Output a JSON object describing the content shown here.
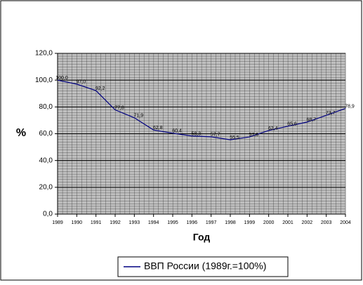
{
  "chart_data": {
    "type": "line",
    "x_label": "Год",
    "y_label": "%",
    "categories": [
      "1989",
      "1990",
      "1991",
      "1992",
      "1993",
      "1994",
      "1995",
      "1996",
      "1997",
      "1998",
      "1999",
      "2000",
      "2001",
      "2002",
      "2003",
      "2004"
    ],
    "series": [
      {
        "name": "ВВП России (1989г.=100%)",
        "color": "#000080",
        "values": [
          100.0,
          97.0,
          92.2,
          77.8,
          71.9,
          62.8,
          60.4,
          58.3,
          57.7,
          55.5,
          57.6,
          62.4,
          65.6,
          68.7,
          73.7,
          78.9
        ],
        "value_labels": [
          "100,0",
          "97,0",
          "92,2",
          "77,8",
          "71,9",
          "62,8",
          "60,4",
          "58,3",
          "57,7",
          "55,5",
          "57,6",
          "62,4",
          "65,6",
          "68,7",
          "73,7",
          "78,9"
        ]
      }
    ],
    "ylim": [
      0,
      120
    ],
    "yticks": [
      {
        "value": 0,
        "label": "0,0"
      },
      {
        "value": 20,
        "label": "20,0"
      },
      {
        "value": 40,
        "label": "40,0"
      },
      {
        "value": 60,
        "label": "60,0"
      },
      {
        "value": 80,
        "label": "80,0"
      },
      {
        "value": 100,
        "label": "100,0"
      },
      {
        "value": 120,
        "label": "120,0"
      }
    ],
    "grid": true,
    "legend": "bottom"
  }
}
